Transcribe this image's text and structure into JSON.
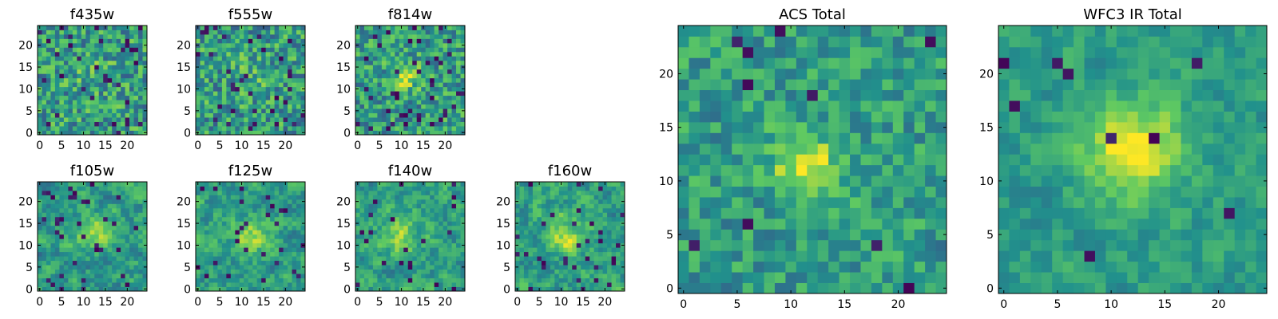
{
  "figure": {
    "type": "image-grid",
    "colormap": "viridis",
    "colormap_stops": [
      "#440154",
      "#3b528b",
      "#21918c",
      "#5ec962",
      "#fde725"
    ]
  },
  "chart_data": [
    {
      "type": "heatmap",
      "title": "f435w",
      "rows": 25,
      "cols": 25,
      "xticks": [
        0,
        5,
        10,
        15,
        20
      ],
      "yticks": [
        0,
        5,
        10,
        15,
        20
      ],
      "xlim": [
        0,
        25
      ],
      "ylim": [
        0,
        25
      ],
      "source_center": [
        12,
        13
      ],
      "source_sigma": 3.0,
      "source_amplitude": 0.1,
      "noise_level": 0.26,
      "smoothing": 0.0,
      "dark_fraction": 0.05
    },
    {
      "type": "heatmap",
      "title": "f555w",
      "rows": 25,
      "cols": 25,
      "xticks": [
        0,
        5,
        10,
        15,
        20
      ],
      "yticks": [
        0,
        5,
        10,
        15,
        20
      ],
      "xlim": [
        0,
        25
      ],
      "ylim": [
        0,
        25
      ],
      "source_center": [
        12,
        13
      ],
      "source_sigma": 3.0,
      "source_amplitude": 0.08,
      "noise_level": 0.26,
      "smoothing": 0.0,
      "dark_fraction": 0.06
    },
    {
      "type": "heatmap",
      "title": "f814w",
      "rows": 25,
      "cols": 25,
      "xticks": [
        0,
        5,
        10,
        15,
        20
      ],
      "yticks": [
        0,
        5,
        10,
        15,
        20
      ],
      "xlim": [
        0,
        25
      ],
      "ylim": [
        0,
        25
      ],
      "source_center": [
        11,
        13
      ],
      "source_sigma": 2.4,
      "source_amplitude": 0.3,
      "noise_level": 0.24,
      "smoothing": 0.0,
      "dark_fraction": 0.05
    },
    {
      "type": "heatmap",
      "title": "f105w",
      "rows": 25,
      "cols": 25,
      "xticks": [
        0,
        5,
        10,
        15,
        20
      ],
      "yticks": [
        0,
        5,
        10,
        15,
        20
      ],
      "xlim": [
        0,
        25
      ],
      "ylim": [
        0,
        25
      ],
      "source_center": [
        12,
        12
      ],
      "source_sigma": 3.0,
      "source_amplitude": 0.28,
      "noise_level": 0.3,
      "smoothing": 0.6,
      "dark_fraction": 0.04
    },
    {
      "type": "heatmap",
      "title": "f125w",
      "rows": 25,
      "cols": 25,
      "xticks": [
        0,
        5,
        10,
        15,
        20
      ],
      "yticks": [
        0,
        5,
        10,
        15,
        20
      ],
      "xlim": [
        0,
        25
      ],
      "ylim": [
        0,
        25
      ],
      "source_center": [
        12,
        12
      ],
      "source_sigma": 3.0,
      "source_amplitude": 0.3,
      "noise_level": 0.3,
      "smoothing": 0.6,
      "dark_fraction": 0.04
    },
    {
      "type": "heatmap",
      "title": "f140w",
      "rows": 25,
      "cols": 25,
      "xticks": [
        0,
        5,
        10,
        15,
        20
      ],
      "yticks": [
        0,
        5,
        10,
        15,
        20
      ],
      "xlim": [
        0,
        25
      ],
      "ylim": [
        0,
        25
      ],
      "source_center": [
        10,
        12
      ],
      "source_sigma": 3.5,
      "source_amplitude": 0.28,
      "noise_level": 0.3,
      "smoothing": 0.6,
      "dark_fraction": 0.04
    },
    {
      "type": "heatmap",
      "title": "f160w",
      "rows": 25,
      "cols": 25,
      "xticks": [
        0,
        5,
        10,
        15,
        20
      ],
      "yticks": [
        0,
        5,
        10,
        15,
        20
      ],
      "xlim": [
        0,
        25
      ],
      "ylim": [
        0,
        25
      ],
      "source_center": [
        11,
        12
      ],
      "source_sigma": 3.0,
      "source_amplitude": 0.3,
      "noise_level": 0.3,
      "smoothing": 0.6,
      "dark_fraction": 0.04
    },
    {
      "type": "heatmap",
      "title": "ACS Total",
      "rows": 25,
      "cols": 25,
      "xticks": [
        0,
        5,
        10,
        15,
        20
      ],
      "yticks": [
        0,
        5,
        10,
        15,
        20
      ],
      "xlim": [
        0,
        25
      ],
      "ylim": [
        0,
        25
      ],
      "source_center": [
        11.5,
        11.5
      ],
      "source_sigma": 2.2,
      "source_amplitude": 0.4,
      "noise_level": 0.22,
      "smoothing": 0.2,
      "dark_fraction": 0.03
    },
    {
      "type": "heatmap",
      "title": "WFC3 IR Total",
      "rows": 25,
      "cols": 25,
      "xticks": [
        0,
        5,
        10,
        15,
        20
      ],
      "yticks": [
        0,
        5,
        10,
        15,
        20
      ],
      "xlim": [
        0,
        25
      ],
      "ylim": [
        0,
        25
      ],
      "source_center": [
        12,
        13
      ],
      "source_sigma": 3.2,
      "source_amplitude": 0.45,
      "noise_level": 0.18,
      "smoothing": 0.5,
      "dark_fraction": 0.02
    }
  ]
}
